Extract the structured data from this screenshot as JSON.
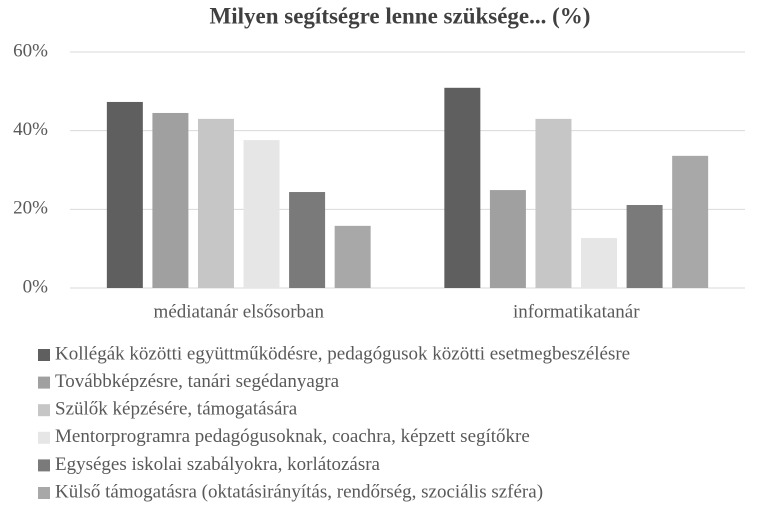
{
  "chart_data": {
    "type": "bar",
    "title": "Milyen segítségre lenne szüksége... (%)",
    "categories": [
      "médiatanár elsősorban",
      "informatikatanár"
    ],
    "series": [
      {
        "name": "Kollégák közötti együttműködésre, pedagógusok közötti esetmegbeszélésre",
        "color": "#5f5f5f",
        "values": [
          47.3,
          50.9
        ]
      },
      {
        "name": "Továbbképzésre, tanári segédanyagra",
        "color": "#a0a0a0",
        "values": [
          44.5,
          24.9
        ]
      },
      {
        "name": "Szülők képzésére, támogatására",
        "color": "#c6c6c6",
        "values": [
          43.0,
          43.0
        ]
      },
      {
        "name": "Mentorprogramra pedagógusoknak, coachra, képzett segítőkre",
        "color": "#e6e6e6",
        "values": [
          37.6,
          12.7
        ]
      },
      {
        "name": "Egységes iskolai szabályokra, korlátozásra",
        "color": "#7a7a7a",
        "values": [
          24.4,
          21.1
        ]
      },
      {
        "name": "Külső támogatásra (oktatásirányítás, rendőrség, szociális szféra)",
        "color": "#a8a8a8",
        "values": [
          15.8,
          33.6
        ]
      }
    ],
    "ylim": [
      0,
      60
    ],
    "yticks": [
      {
        "value": 0,
        "label": "0%"
      },
      {
        "value": 20,
        "label": "20%"
      },
      {
        "value": 40,
        "label": "40%"
      },
      {
        "value": 60,
        "label": "60%"
      }
    ],
    "grid": true,
    "legend": "bottom"
  }
}
